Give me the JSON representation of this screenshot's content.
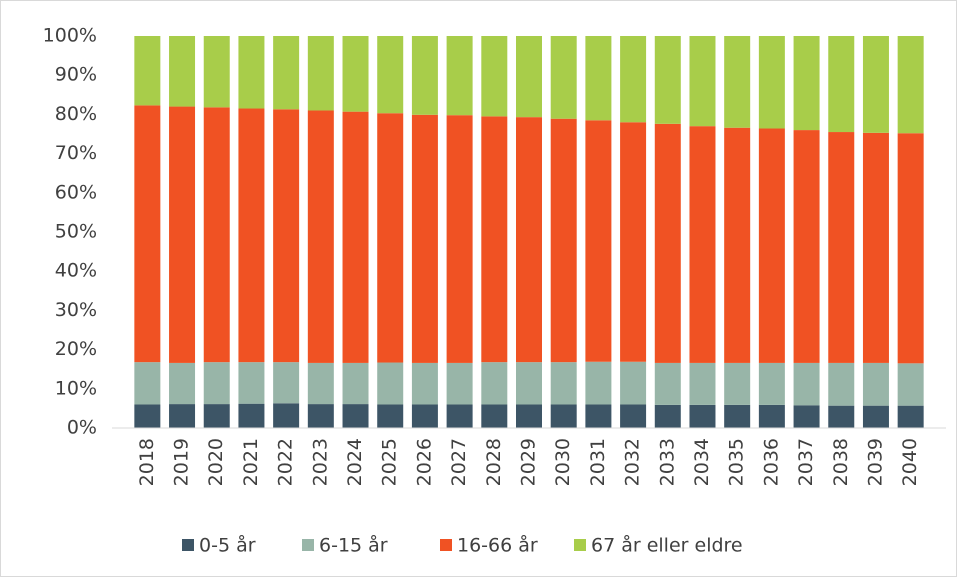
{
  "chart_data": {
    "type": "stacked_bar",
    "categories": [
      "2018",
      "2019",
      "2020",
      "2021",
      "2022",
      "2023",
      "2024",
      "2025",
      "2026",
      "2027",
      "2028",
      "2029",
      "2030",
      "2031",
      "2032",
      "2033",
      "2034",
      "2035",
      "2036",
      "2037",
      "2038",
      "2039",
      "2040"
    ],
    "series": [
      {
        "name": "0-5 år",
        "color": "#3d5566",
        "values": [
          6.0,
          6.1,
          6.1,
          6.2,
          6.3,
          6.1,
          6.1,
          6.0,
          6.0,
          6.0,
          6.0,
          6.0,
          6.0,
          6.0,
          6.0,
          5.9,
          5.9,
          5.9,
          5.9,
          5.8,
          5.7,
          5.7,
          5.7
        ]
      },
      {
        "name": "6-15 år",
        "color": "#98b5a8",
        "values": [
          10.8,
          10.5,
          10.7,
          10.6,
          10.5,
          10.5,
          10.5,
          10.7,
          10.6,
          10.6,
          10.8,
          10.8,
          10.8,
          10.9,
          10.9,
          10.7,
          10.7,
          10.7,
          10.7,
          10.8,
          10.9,
          10.9,
          10.8
        ]
      },
      {
        "name": "16-66 år",
        "color": "#f05223",
        "values": [
          65.5,
          65.4,
          65.0,
          64.7,
          64.5,
          64.4,
          64.1,
          63.6,
          63.3,
          63.2,
          62.7,
          62.5,
          62.1,
          61.6,
          61.1,
          61.0,
          60.4,
          60.0,
          59.8,
          59.4,
          58.9,
          58.7,
          58.7
        ]
      },
      {
        "name": "67 år eller eldre",
        "color": "#a8cd4a",
        "values": [
          17.7,
          18.0,
          18.2,
          18.5,
          18.7,
          19.0,
          19.3,
          19.7,
          20.1,
          20.2,
          20.5,
          20.7,
          21.1,
          21.5,
          22.0,
          22.4,
          23.0,
          23.4,
          23.6,
          24.0,
          24.5,
          24.7,
          24.8
        ]
      }
    ],
    "ylim": [
      0,
      100
    ],
    "yticks": [
      {
        "value": 0,
        "label": "0%"
      },
      {
        "value": 10,
        "label": "10%"
      },
      {
        "value": 20,
        "label": "20%"
      },
      {
        "value": 30,
        "label": "30%"
      },
      {
        "value": 40,
        "label": "40%"
      },
      {
        "value": 50,
        "label": "50%"
      },
      {
        "value": 60,
        "label": "60%"
      },
      {
        "value": 70,
        "label": "70%"
      },
      {
        "value": 80,
        "label": "80%"
      },
      {
        "value": 90,
        "label": "90%"
      },
      {
        "value": 100,
        "label": "100%"
      }
    ],
    "grid": false,
    "legend": "bottom"
  }
}
